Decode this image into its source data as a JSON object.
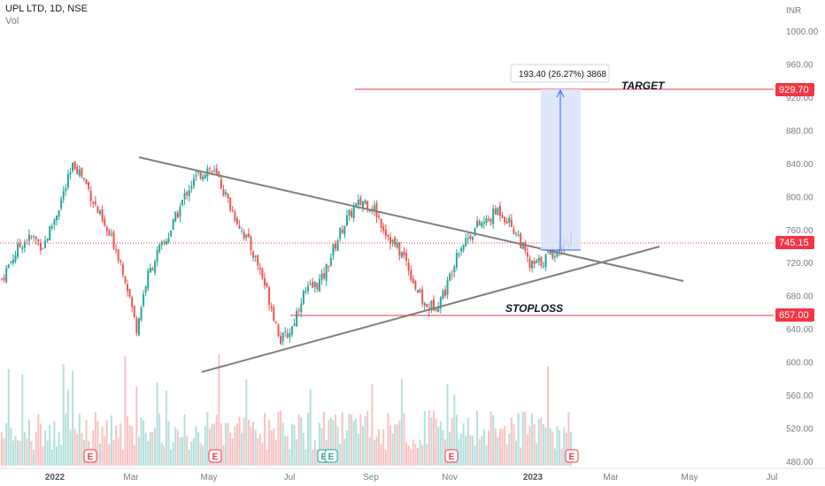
{
  "header": {
    "symbol": "UPL LTD, 1D, NSE",
    "volume_label": "Vol"
  },
  "currency": "INR",
  "chart_data": {
    "type": "candlestick",
    "title": "UPL LTD, 1D, NSE",
    "ylim": [
      480,
      1030
    ],
    "y_ticks": [
      "1000.00",
      "960.00",
      "920.00",
      "880.00",
      "840.00",
      "800.00",
      "760.00",
      "720.00",
      "680.00",
      "640.00",
      "600.00",
      "560.00",
      "520.00",
      "480.00"
    ],
    "x_ticks": [
      {
        "label": "2022",
        "bold": true
      },
      {
        "label": "Mar",
        "bold": false
      },
      {
        "label": "May",
        "bold": false
      },
      {
        "label": "Jul",
        "bold": false
      },
      {
        "label": "Sep",
        "bold": false
      },
      {
        "label": "Nov",
        "bold": false
      },
      {
        "label": "2023",
        "bold": true
      },
      {
        "label": "Mar",
        "bold": false
      },
      {
        "label": "May",
        "bold": false
      },
      {
        "label": "Jul",
        "bold": false
      }
    ],
    "price_close_path": [
      700,
      725,
      745,
      750,
      740,
      770,
      805,
      840,
      820,
      790,
      760,
      740,
      700,
      640,
      700,
      730,
      750,
      780,
      810,
      825,
      835,
      820,
      790,
      765,
      740,
      710,
      670,
      625,
      640,
      680,
      690,
      700,
      735,
      765,
      785,
      795,
      785,
      760,
      740,
      725,
      690,
      665,
      670,
      690,
      735,
      750,
      765,
      770,
      785,
      770,
      750,
      715,
      720,
      730,
      740,
      750
    ],
    "levels": [
      {
        "label": "TARGET",
        "value": "929.70",
        "color": "#f23645"
      },
      {
        "label": "STOPLOSS",
        "value": "657.00",
        "color": "#f23645"
      }
    ],
    "last_price": {
      "value": "745.15",
      "color": "#f23645"
    },
    "measure": {
      "text": "193.40 (26.27%) 3868"
    },
    "volume_event_markers": [
      "E",
      "E",
      "E",
      "E",
      "E",
      "E"
    ],
    "colors": {
      "up": "#26a69a",
      "down": "#ef5350",
      "trendline": "#808080",
      "measure_fill": "#dbe3fb"
    },
    "grid": false
  }
}
